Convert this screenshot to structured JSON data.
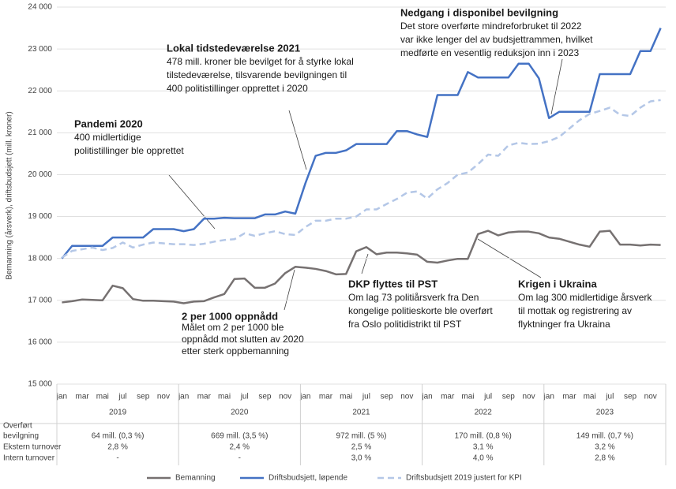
{
  "chart_data": {
    "type": "line",
    "y_label": "Bemanning (årsverk), driftsbudsjett (mill. kroner)",
    "categories": [
      "jan",
      null,
      "mar",
      null,
      "mai",
      null,
      "jul",
      null,
      "sep",
      null,
      "nov",
      null,
      "jan",
      null,
      "mar",
      null,
      "mai",
      null,
      "jul",
      null,
      "sep",
      null,
      "nov",
      null,
      "jan",
      null,
      "mar",
      null,
      "mai",
      null,
      "jul",
      null,
      "sep",
      null,
      "nov",
      null,
      "jan",
      null,
      "mar",
      null,
      "mai",
      null,
      "jul",
      null,
      "sep",
      null,
      "nov",
      null,
      "jan",
      null,
      "mar",
      null,
      "mai",
      null,
      "jul",
      null,
      "sep",
      null,
      "nov",
      null
    ],
    "years": [
      "2019",
      "2020",
      "2021",
      "2022",
      "2023"
    ],
    "ylim": [
      15000,
      24000
    ],
    "yticks": [
      {
        "value": 15000,
        "label": "15 000"
      },
      {
        "value": 16000,
        "label": "16 000"
      },
      {
        "value": 17000,
        "label": "17 000"
      },
      {
        "value": 18000,
        "label": "18 000"
      },
      {
        "value": 19000,
        "label": "19 000"
      },
      {
        "value": 20000,
        "label": "20 000"
      },
      {
        "value": 21000,
        "label": "21 000"
      },
      {
        "value": 22000,
        "label": "22 000"
      },
      {
        "value": 23000,
        "label": "23 000"
      },
      {
        "value": 24000,
        "label": "24 000"
      }
    ],
    "grid": true,
    "legend": "bottom",
    "series": [
      {
        "name": "Bemanning",
        "color": "#767171",
        "dash": false,
        "values": [
          16950,
          16980,
          17020,
          17010,
          17000,
          17350,
          17290,
          17030,
          16990,
          16990,
          16980,
          16970,
          16930,
          16970,
          16980,
          17070,
          17150,
          17510,
          17520,
          17300,
          17300,
          17400,
          17650,
          17800,
          17780,
          17750,
          17700,
          17620,
          17630,
          18170,
          18270,
          18100,
          18140,
          18140,
          18120,
          18090,
          17920,
          17900,
          17950,
          17990,
          17990,
          18580,
          18660,
          18550,
          18620,
          18640,
          18640,
          18600,
          18500,
          18470,
          18400,
          18330,
          18280,
          18640,
          18660,
          18330,
          18330,
          18310,
          18330,
          18320
        ]
      },
      {
        "name": "Driftsbudsjett, løpende",
        "color": "#4472c4",
        "dash": false,
        "values": [
          18000,
          18300,
          18300,
          18300,
          18300,
          18500,
          18500,
          18500,
          18500,
          18700,
          18700,
          18700,
          18650,
          18700,
          18950,
          18950,
          18970,
          18960,
          18960,
          18960,
          19050,
          19050,
          19120,
          19070,
          19800,
          20450,
          20520,
          20520,
          20580,
          20730,
          20730,
          20730,
          20730,
          21040,
          21040,
          20960,
          20900,
          21900,
          21900,
          21900,
          22450,
          22320,
          22320,
          22320,
          22320,
          22650,
          22650,
          22300,
          21350,
          21500,
          21500,
          21500,
          21500,
          22400,
          22400,
          22400,
          22400,
          22950,
          22950,
          23500
        ]
      },
      {
        "name": "Driftsbudsjett 2019 justert for KPI",
        "color": "#b4c7e7",
        "dash": true,
        "values": [
          18020,
          18180,
          18220,
          18260,
          18200,
          18250,
          18380,
          18260,
          18330,
          18380,
          18360,
          18340,
          18340,
          18320,
          18350,
          18400,
          18440,
          18460,
          18600,
          18540,
          18600,
          18650,
          18580,
          18560,
          18750,
          18900,
          18900,
          18950,
          18950,
          19000,
          19170,
          19170,
          19300,
          19420,
          19570,
          19600,
          19430,
          19650,
          19800,
          20000,
          20050,
          20250,
          20480,
          20450,
          20700,
          20760,
          20730,
          20740,
          20800,
          20900,
          21100,
          21300,
          21450,
          21520,
          21600,
          21430,
          21400,
          21600,
          21750,
          21780
        ]
      }
    ],
    "annotations": [
      {
        "title": "Lokal tidstedeværelse 2021",
        "text": [
          "478 mill. kroner ble bevilget for å styrke lokal",
          "tilstedeværelse, tilsvarende bevilgningen til",
          "400 politistillinger opprettet i 2020"
        ]
      },
      {
        "title": "Pandemi 2020",
        "text": [
          "400 midlertidige",
          "politistillinger ble opprettet"
        ]
      },
      {
        "title": "Nedgang i disponibel bevilgning",
        "text": [
          "Det store overførte mindreforbruket til 2022",
          "var ikke lenger del av budsjettrammen, hvilket",
          "medførte en vesentlig reduksjon inn i 2023"
        ]
      },
      {
        "title": "2 per 1000 oppnådd",
        "text": [
          "Målet om 2 per 1000 ble",
          "oppnådd mot slutten av 2020",
          "etter sterk oppbemanning"
        ]
      },
      {
        "title": "DKP flyttes til PST",
        "text": [
          "Om lag 73 politiårsverk fra Den",
          "kongelige politieskorte ble overført",
          "fra Oslo politidistrikt til PST"
        ]
      },
      {
        "title": "Krigen i Ukraina",
        "text": [
          "Om lag 300 midlertidige årsverk",
          "til mottak og registrering av",
          "flyktninger fra Ukraina"
        ]
      }
    ],
    "table": [
      {
        "label": [
          "Overført",
          "bevilgning"
        ],
        "values": [
          "64 mill. (0,3 %)",
          "669 mill. (3,5 %)",
          "972 mill. (5 %)",
          "170 mill. (0,8 %)",
          "149 mill. (0,7 %)"
        ]
      },
      {
        "label": [
          "Ekstern turnover"
        ],
        "values": [
          "2,8 %",
          "2,4 %",
          "2,5 %",
          "3,1 %",
          "3,2 %"
        ]
      },
      {
        "label": [
          "Intern turnover"
        ],
        "values": [
          "-",
          "-",
          "3,0 %",
          "4,0 %",
          "2,8 %"
        ]
      }
    ]
  }
}
